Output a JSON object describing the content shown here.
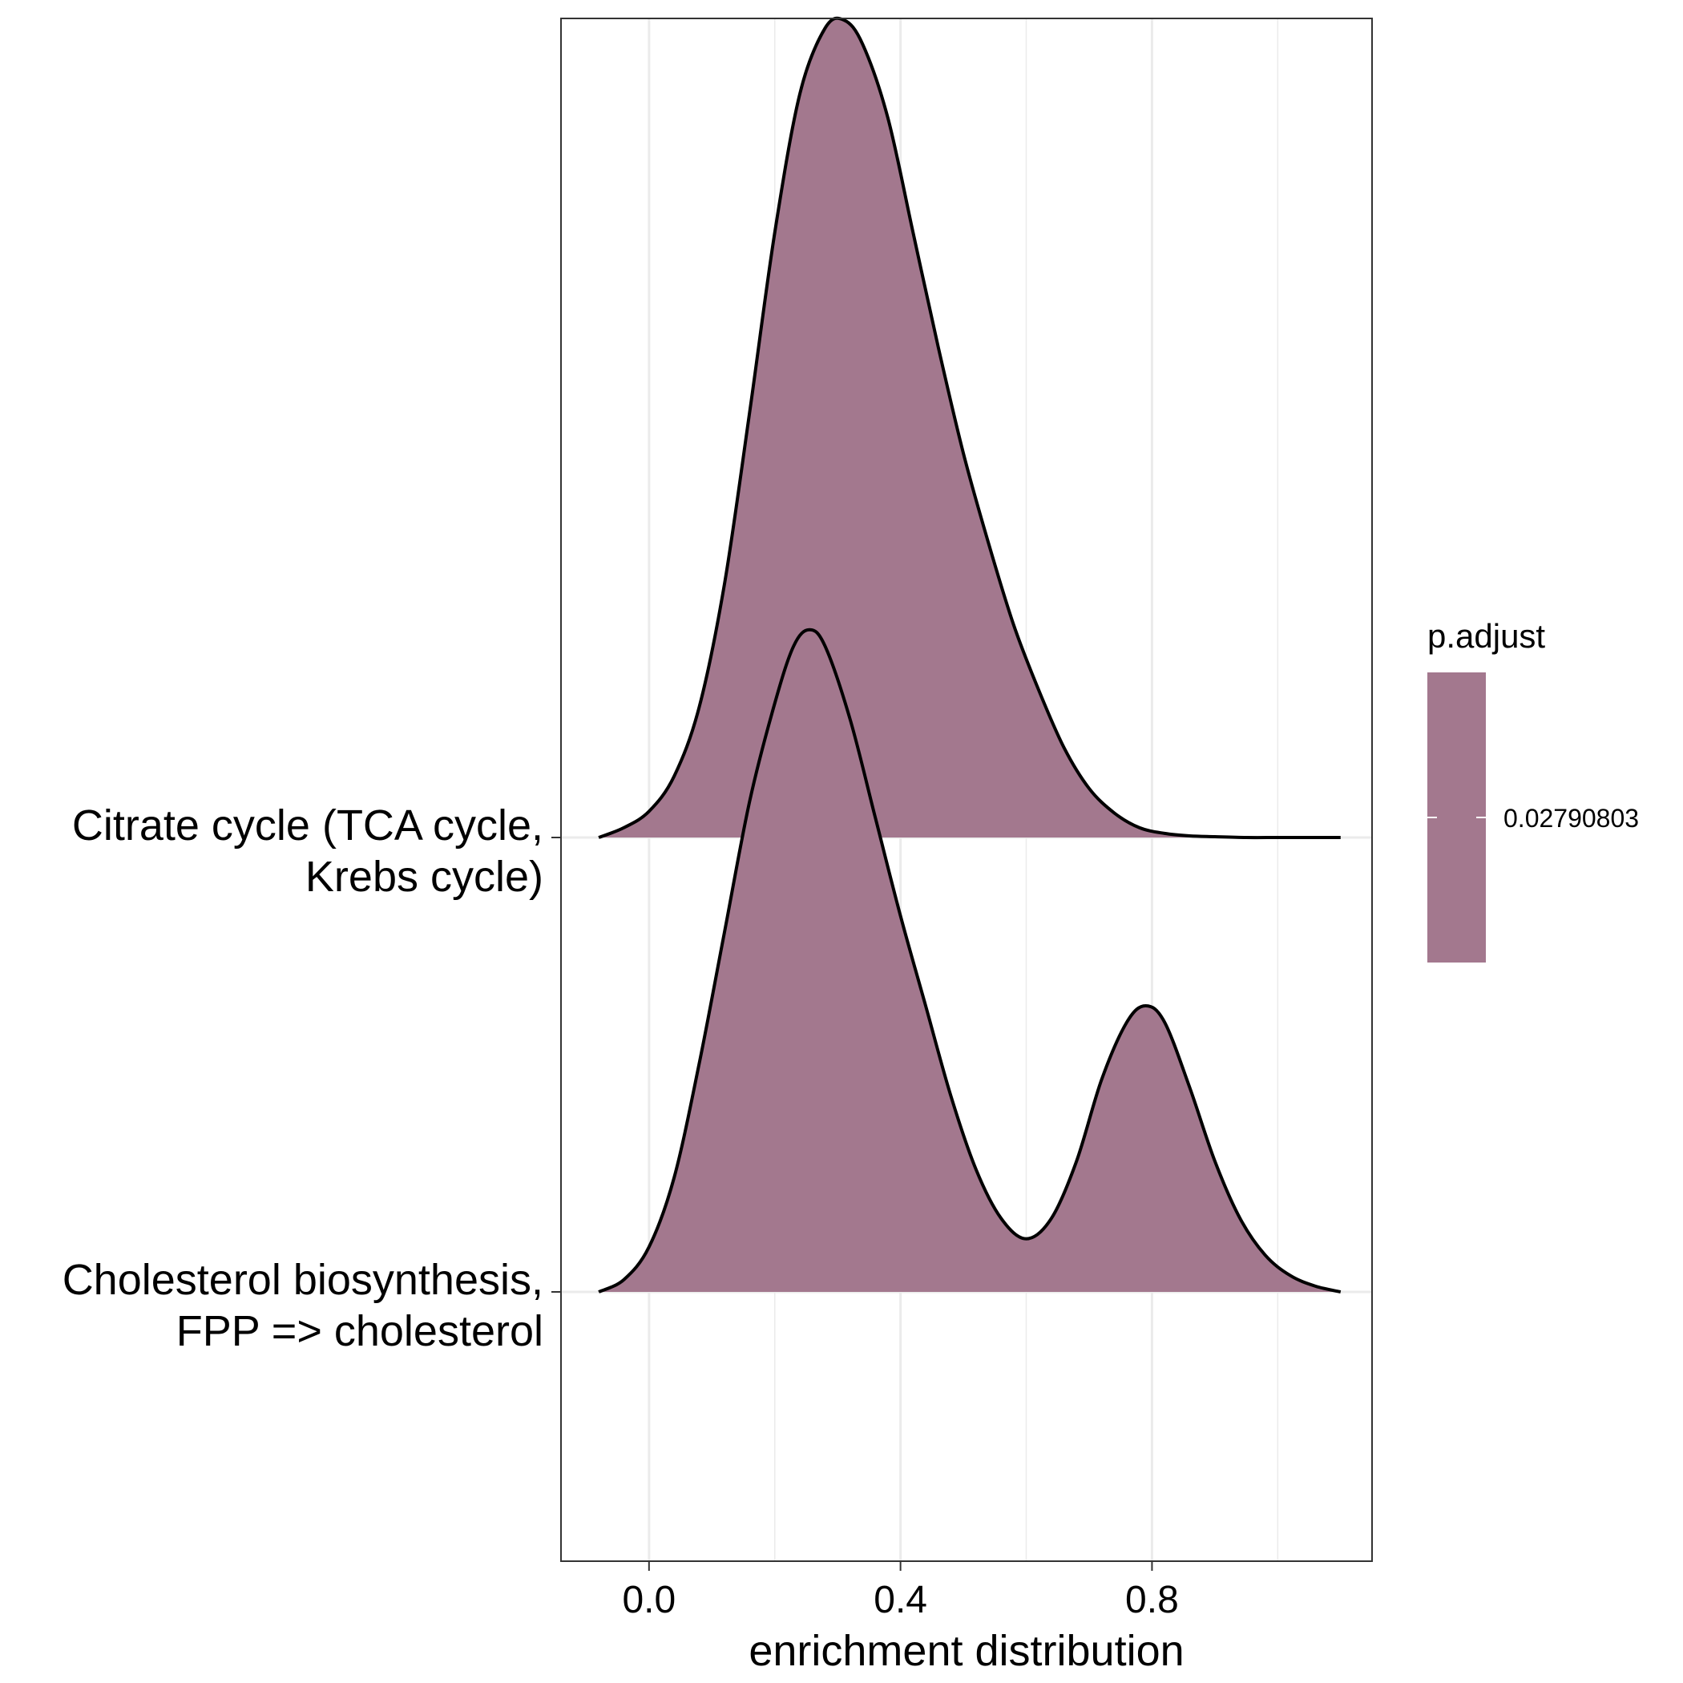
{
  "chart_data": {
    "type": "area",
    "subtype": "ridgeline",
    "xlabel": "enrichment distribution",
    "ylabel": "",
    "x_ticks": [
      0.0,
      0.4,
      0.8
    ],
    "x_tick_labels": [
      "0.0",
      "0.4",
      "0.8"
    ],
    "xlim": [
      -0.14,
      1.15
    ],
    "grid": true,
    "fill_color": "#a3788e",
    "series": [
      {
        "name": "Citrate cycle (TCA cycle, Krebs cycle)",
        "label_lines": [
          "Citrate cycle (TCA cycle,",
          "Krebs cycle)"
        ],
        "baseline": 2,
        "x": [
          -0.08,
          -0.04,
          0.0,
          0.04,
          0.08,
          0.12,
          0.16,
          0.2,
          0.24,
          0.28,
          0.31,
          0.34,
          0.38,
          0.42,
          0.46,
          0.5,
          0.54,
          0.58,
          0.62,
          0.66,
          0.7,
          0.74,
          0.78,
          0.82,
          0.86,
          0.9,
          0.95,
          1.0,
          1.05,
          1.1
        ],
        "density": [
          0.0,
          0.012,
          0.032,
          0.075,
          0.16,
          0.31,
          0.52,
          0.74,
          0.91,
          0.99,
          1.0,
          0.97,
          0.88,
          0.74,
          0.6,
          0.47,
          0.36,
          0.26,
          0.18,
          0.11,
          0.06,
          0.03,
          0.012,
          0.005,
          0.002,
          0.001,
          0.0,
          0.0,
          0.0,
          0.0
        ]
      },
      {
        "name": "Cholesterol biosynthesis, FPP => cholesterol",
        "label_lines": [
          "Cholesterol biosynthesis,",
          "FPP => cholesterol"
        ],
        "baseline": 1,
        "x": [
          -0.08,
          -0.04,
          0.0,
          0.04,
          0.08,
          0.12,
          0.16,
          0.2,
          0.23,
          0.255,
          0.28,
          0.32,
          0.36,
          0.4,
          0.44,
          0.48,
          0.52,
          0.56,
          0.6,
          0.64,
          0.68,
          0.72,
          0.76,
          0.79,
          0.82,
          0.86,
          0.9,
          0.94,
          0.98,
          1.02,
          1.06,
          1.1
        ],
        "density": [
          0.0,
          0.015,
          0.055,
          0.14,
          0.28,
          0.44,
          0.6,
          0.72,
          0.79,
          0.81,
          0.79,
          0.7,
          0.58,
          0.46,
          0.35,
          0.24,
          0.15,
          0.09,
          0.065,
          0.09,
          0.16,
          0.26,
          0.33,
          0.35,
          0.33,
          0.25,
          0.16,
          0.09,
          0.045,
          0.02,
          0.007,
          0.0
        ]
      }
    ],
    "legend": {
      "title": "p.adjust",
      "label": "0.02790803",
      "position": "right"
    }
  }
}
